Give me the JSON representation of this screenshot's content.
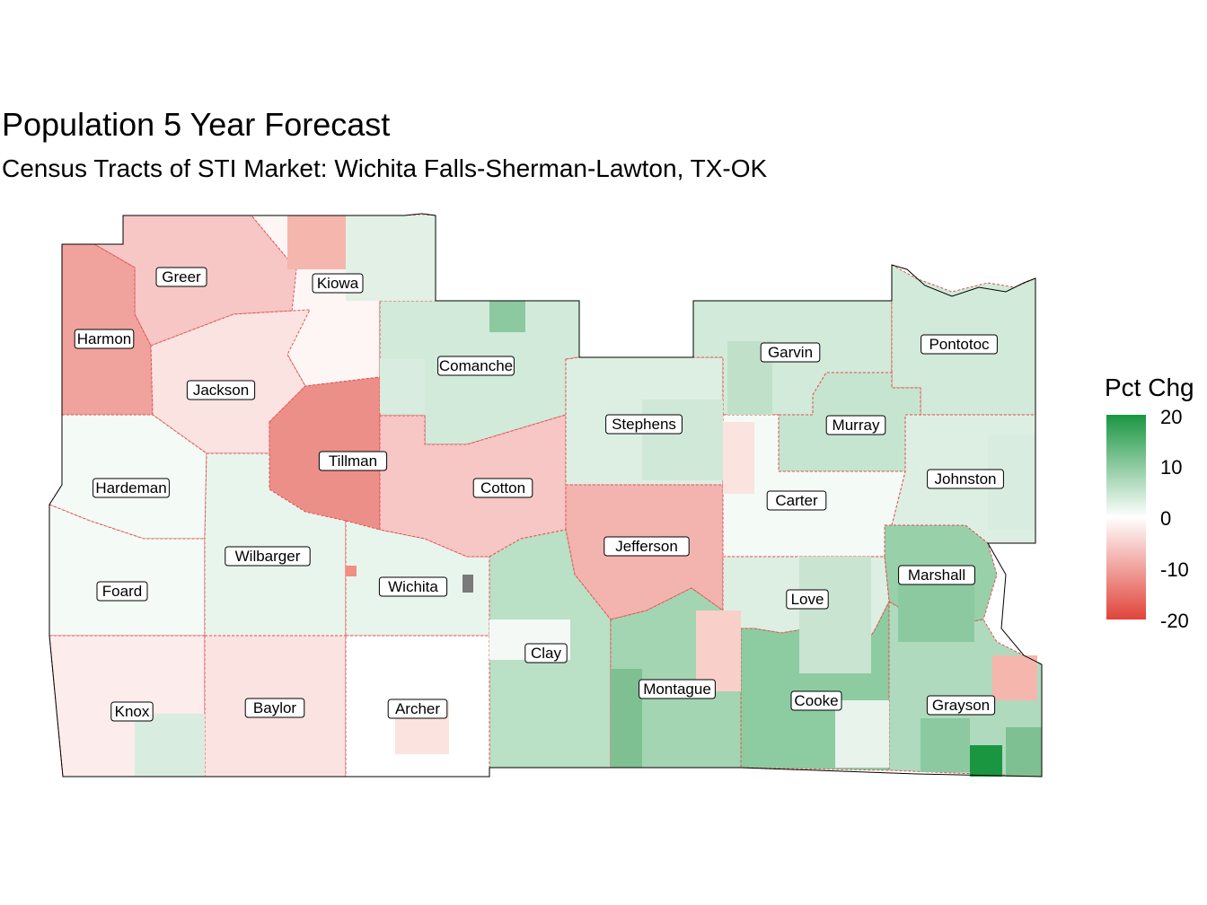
{
  "title": "Population 5 Year Forecast",
  "subtitle": "Census Tracts of STI Market: Wichita Falls-Sherman-Lawton, TX-OK",
  "legend": {
    "title": "Pct Chg",
    "ticks": [
      "20",
      "10",
      "0",
      "-10",
      "-20"
    ],
    "colors": {
      "high": "#1a9641",
      "mid": "#ffffff",
      "low": "#e0443a"
    }
  },
  "counties": [
    {
      "name": "Greer",
      "pct": -6
    },
    {
      "name": "Kiowa",
      "pct": -1
    },
    {
      "name": "Harmon",
      "pct": -10
    },
    {
      "name": "Jackson",
      "pct": -3
    },
    {
      "name": "Comanche",
      "pct": 4
    },
    {
      "name": "Tillman",
      "pct": -12
    },
    {
      "name": "Hardeman",
      "pct": 1
    },
    {
      "name": "Foard",
      "pct": 1
    },
    {
      "name": "Wilbarger",
      "pct": 2
    },
    {
      "name": "Wichita",
      "pct": 2
    },
    {
      "name": "Cotton",
      "pct": -6
    },
    {
      "name": "Stephens",
      "pct": 3
    },
    {
      "name": "Jefferson",
      "pct": -8
    },
    {
      "name": "Clay",
      "pct": 6
    },
    {
      "name": "Knox",
      "pct": -2
    },
    {
      "name": "Baylor",
      "pct": -3
    },
    {
      "name": "Archer",
      "pct": 0
    },
    {
      "name": "Montague",
      "pct": 8
    },
    {
      "name": "Garvin",
      "pct": 4
    },
    {
      "name": "Pontotoc",
      "pct": 4
    },
    {
      "name": "Murray",
      "pct": 5
    },
    {
      "name": "Johnston",
      "pct": 3
    },
    {
      "name": "Carter",
      "pct": 1
    },
    {
      "name": "Marshall",
      "pct": 9
    },
    {
      "name": "Love",
      "pct": 3
    },
    {
      "name": "Cooke",
      "pct": 10
    },
    {
      "name": "Grayson",
      "pct": 7
    }
  ]
}
